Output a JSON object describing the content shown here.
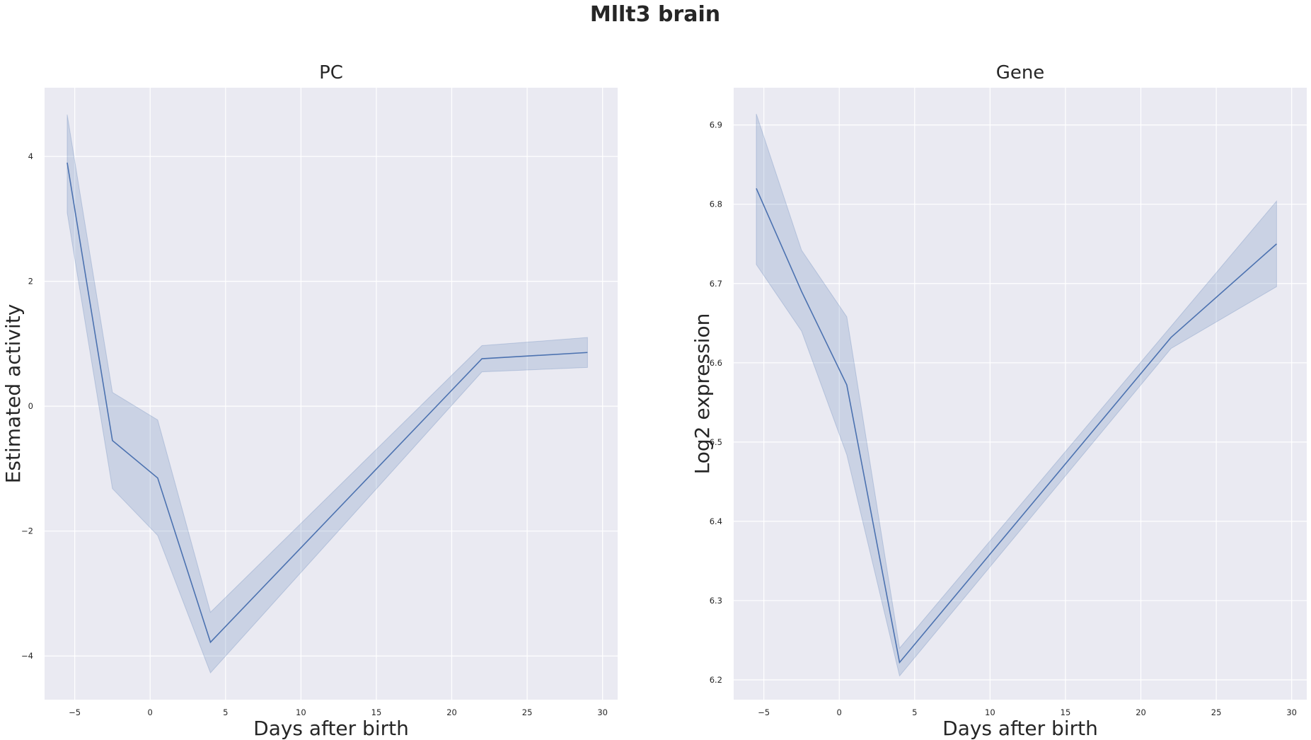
{
  "figure": {
    "title": "Mllt3 brain"
  },
  "colors": {
    "background": "#eaeaf2",
    "grid": "#ffffff",
    "line": "#4c72b0",
    "band": "#4c72b0"
  },
  "chart_data": [
    {
      "type": "line",
      "title": "PC",
      "xlabel": "Days after birth",
      "ylabel": "Estimated activity",
      "xlim": [
        -7,
        31
      ],
      "ylim": [
        -4.7,
        5.1
      ],
      "xticks": [
        -5,
        0,
        5,
        10,
        15,
        20,
        25,
        30
      ],
      "yticks": [
        -4,
        -2,
        0,
        2,
        4
      ],
      "grid": true,
      "series": [
        {
          "x": [
            -5.5,
            -2.5,
            0.5,
            4,
            22,
            29
          ],
          "y": [
            3.9,
            -0.55,
            -1.15,
            -3.78,
            0.76,
            0.86
          ],
          "lower": [
            3.1,
            -1.32,
            -2.07,
            -4.27,
            0.55,
            0.62
          ],
          "upper": [
            4.67,
            0.22,
            -0.22,
            -3.3,
            0.97,
            1.1
          ]
        }
      ]
    },
    {
      "type": "line",
      "title": "Gene",
      "xlabel": "Days after birth",
      "ylabel": "Log2 expression",
      "xlim": [
        -7,
        31
      ],
      "ylim": [
        6.175,
        6.947
      ],
      "xticks": [
        -5,
        0,
        5,
        10,
        15,
        20,
        25,
        30
      ],
      "yticks": [
        6.2,
        6.3,
        6.4,
        6.5,
        6.6,
        6.7,
        6.8,
        6.9
      ],
      "grid": true,
      "series": [
        {
          "x": [
            -5.5,
            -2.5,
            0.5,
            4,
            22,
            29
          ],
          "y": [
            6.82,
            6.69,
            6.572,
            6.222,
            6.632,
            6.75
          ],
          "lower": [
            6.724,
            6.64,
            6.484,
            6.205,
            6.618,
            6.696
          ],
          "upper": [
            6.914,
            6.742,
            6.658,
            6.24,
            6.646,
            6.804
          ]
        }
      ]
    }
  ]
}
